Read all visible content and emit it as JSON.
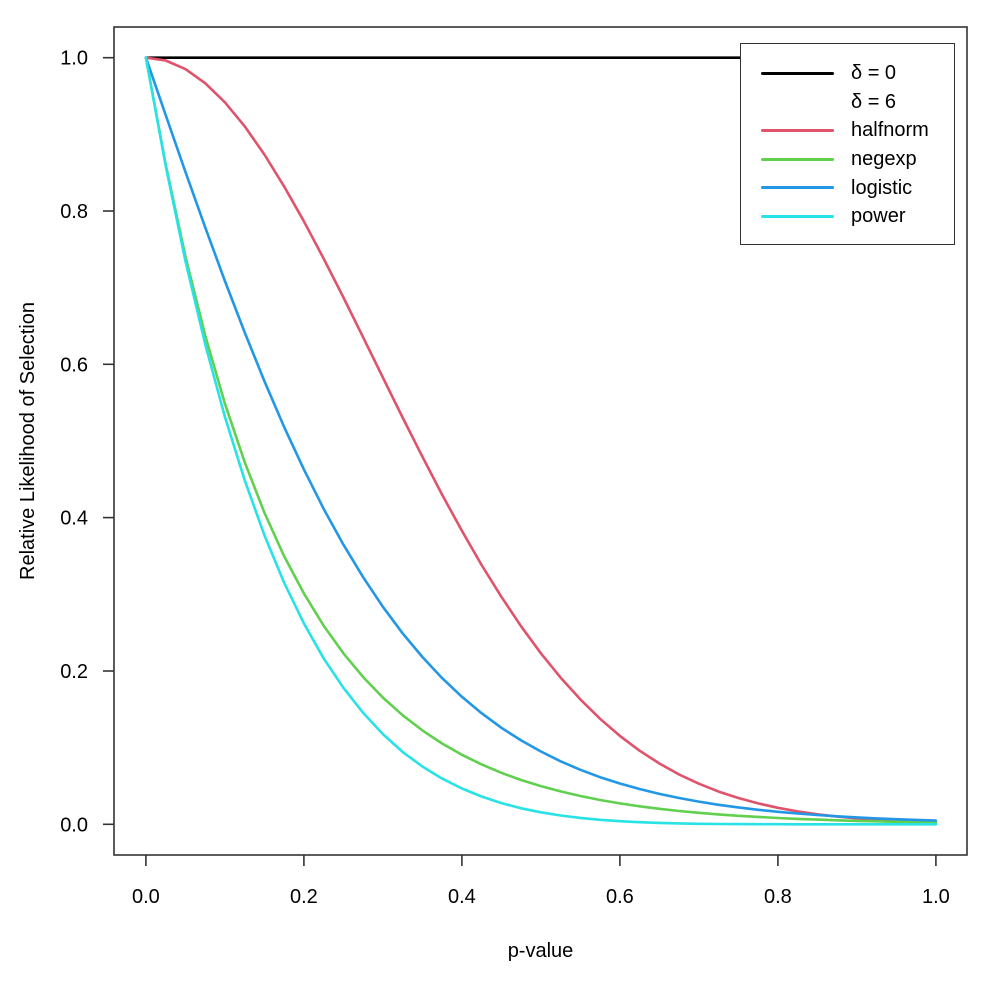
{
  "chart_data": {
    "type": "line",
    "title": "",
    "xlabel": "p-value",
    "ylabel": "Relative Likelihood of Selection",
    "xlim": [
      0,
      1
    ],
    "ylim": [
      0,
      1
    ],
    "grid": false,
    "legend_position": "top-right",
    "x_ticks": [
      "0.0",
      "0.2",
      "0.4",
      "0.6",
      "0.8",
      "1.0"
    ],
    "y_ticks": [
      "0.0",
      "0.2",
      "0.4",
      "0.6",
      "0.8",
      "1.0"
    ],
    "x": [
      0,
      0.025,
      0.05,
      0.075,
      0.1,
      0.125,
      0.15,
      0.175,
      0.2,
      0.225,
      0.25,
      0.275,
      0.3,
      0.325,
      0.35,
      0.375,
      0.4,
      0.425,
      0.45,
      0.475,
      0.5,
      0.525,
      0.55,
      0.575,
      0.6,
      0.625,
      0.65,
      0.675,
      0.7,
      0.725,
      0.75,
      0.775,
      0.8,
      0.825,
      0.85,
      0.875,
      0.9,
      0.925,
      0.95,
      0.975,
      1
    ],
    "series": [
      {
        "name": "δ = 0",
        "key": "delta0",
        "color": "#000000",
        "x": [
          0,
          1
        ],
        "values": [
          1,
          1
        ]
      },
      {
        "name": "halfnorm",
        "key": "halfnorm",
        "color": "#DF536B",
        "values": [
          1,
          0.9963,
          0.9851,
          0.9668,
          0.9418,
          0.9105,
          0.8737,
          0.8321,
          0.7866,
          0.738,
          0.6873,
          0.6352,
          0.5827,
          0.5306,
          0.4795,
          0.4301,
          0.3829,
          0.3383,
          0.2967,
          0.2583,
          0.2231,
          0.1913,
          0.1629,
          0.1376,
          0.1153,
          0.096,
          0.0793,
          0.065,
          0.0529,
          0.0427,
          0.0343,
          0.0272,
          0.0215,
          0.0168,
          0.0131,
          0.0101,
          0.0078,
          0.0059,
          0.0044,
          0.0033,
          0.0025
        ]
      },
      {
        "name": "negexp",
        "key": "negexp",
        "color": "#61D04F",
        "values": [
          1,
          0.8607,
          0.7408,
          0.6376,
          0.5488,
          0.4724,
          0.4066,
          0.3499,
          0.3012,
          0.2592,
          0.2231,
          0.192,
          0.1653,
          0.1423,
          0.1225,
          0.1054,
          0.0907,
          0.0781,
          0.0672,
          0.0578,
          0.0498,
          0.0429,
          0.0369,
          0.0317,
          0.0273,
          0.0235,
          0.0202,
          0.0174,
          0.015,
          0.0129,
          0.0111,
          0.0096,
          0.0082,
          0.0071,
          0.0061,
          0.0052,
          0.0045,
          0.0039,
          0.0033,
          0.0029,
          0.0025
        ]
      },
      {
        "name": "logistic",
        "key": "logistic",
        "color": "#2297E6",
        "values": [
          1,
          0.9251,
          0.8511,
          0.7787,
          0.7087,
          0.6416,
          0.5781,
          0.5184,
          0.463,
          0.4117,
          0.3648,
          0.3222,
          0.2837,
          0.2491,
          0.2182,
          0.1907,
          0.1663,
          0.1449,
          0.1259,
          0.1094,
          0.0949,
          0.0822,
          0.0711,
          0.0615,
          0.0532,
          0.046,
          0.0397,
          0.0343,
          0.0296,
          0.0255,
          0.022,
          0.0189,
          0.0163,
          0.0141,
          0.0121,
          0.0104,
          0.009,
          0.0077,
          0.0067,
          0.0057,
          0.0049
        ]
      },
      {
        "name": "power",
        "key": "power",
        "color": "#28E2E5",
        "values": [
          1,
          0.859,
          0.7351,
          0.6264,
          0.5314,
          0.4488,
          0.3771,
          0.3153,
          0.2621,
          0.2166,
          0.178,
          0.1453,
          0.1176,
          0.0945,
          0.0754,
          0.0596,
          0.0467,
          0.0362,
          0.0277,
          0.0209,
          0.0156,
          0.0115,
          0.0083,
          0.0059,
          0.0041,
          0.0028,
          0.0018,
          0.0012,
          0.0007,
          0.0004,
          0.0002,
          0.0001,
          0.0001,
          0,
          0,
          0,
          0,
          0,
          0,
          0,
          0
        ]
      }
    ]
  },
  "legend": {
    "items": [
      {
        "label": "δ = 0",
        "color": "#000000",
        "show_line": true
      },
      {
        "label": "δ = 6",
        "color": null,
        "show_line": false
      },
      {
        "label": "halfnorm",
        "color": "#DF536B",
        "show_line": true
      },
      {
        "label": "negexp",
        "color": "#61D04F",
        "show_line": true
      },
      {
        "label": "logistic",
        "color": "#2297E6",
        "show_line": true
      },
      {
        "label": "power",
        "color": "#28E2E5",
        "show_line": true
      }
    ]
  }
}
